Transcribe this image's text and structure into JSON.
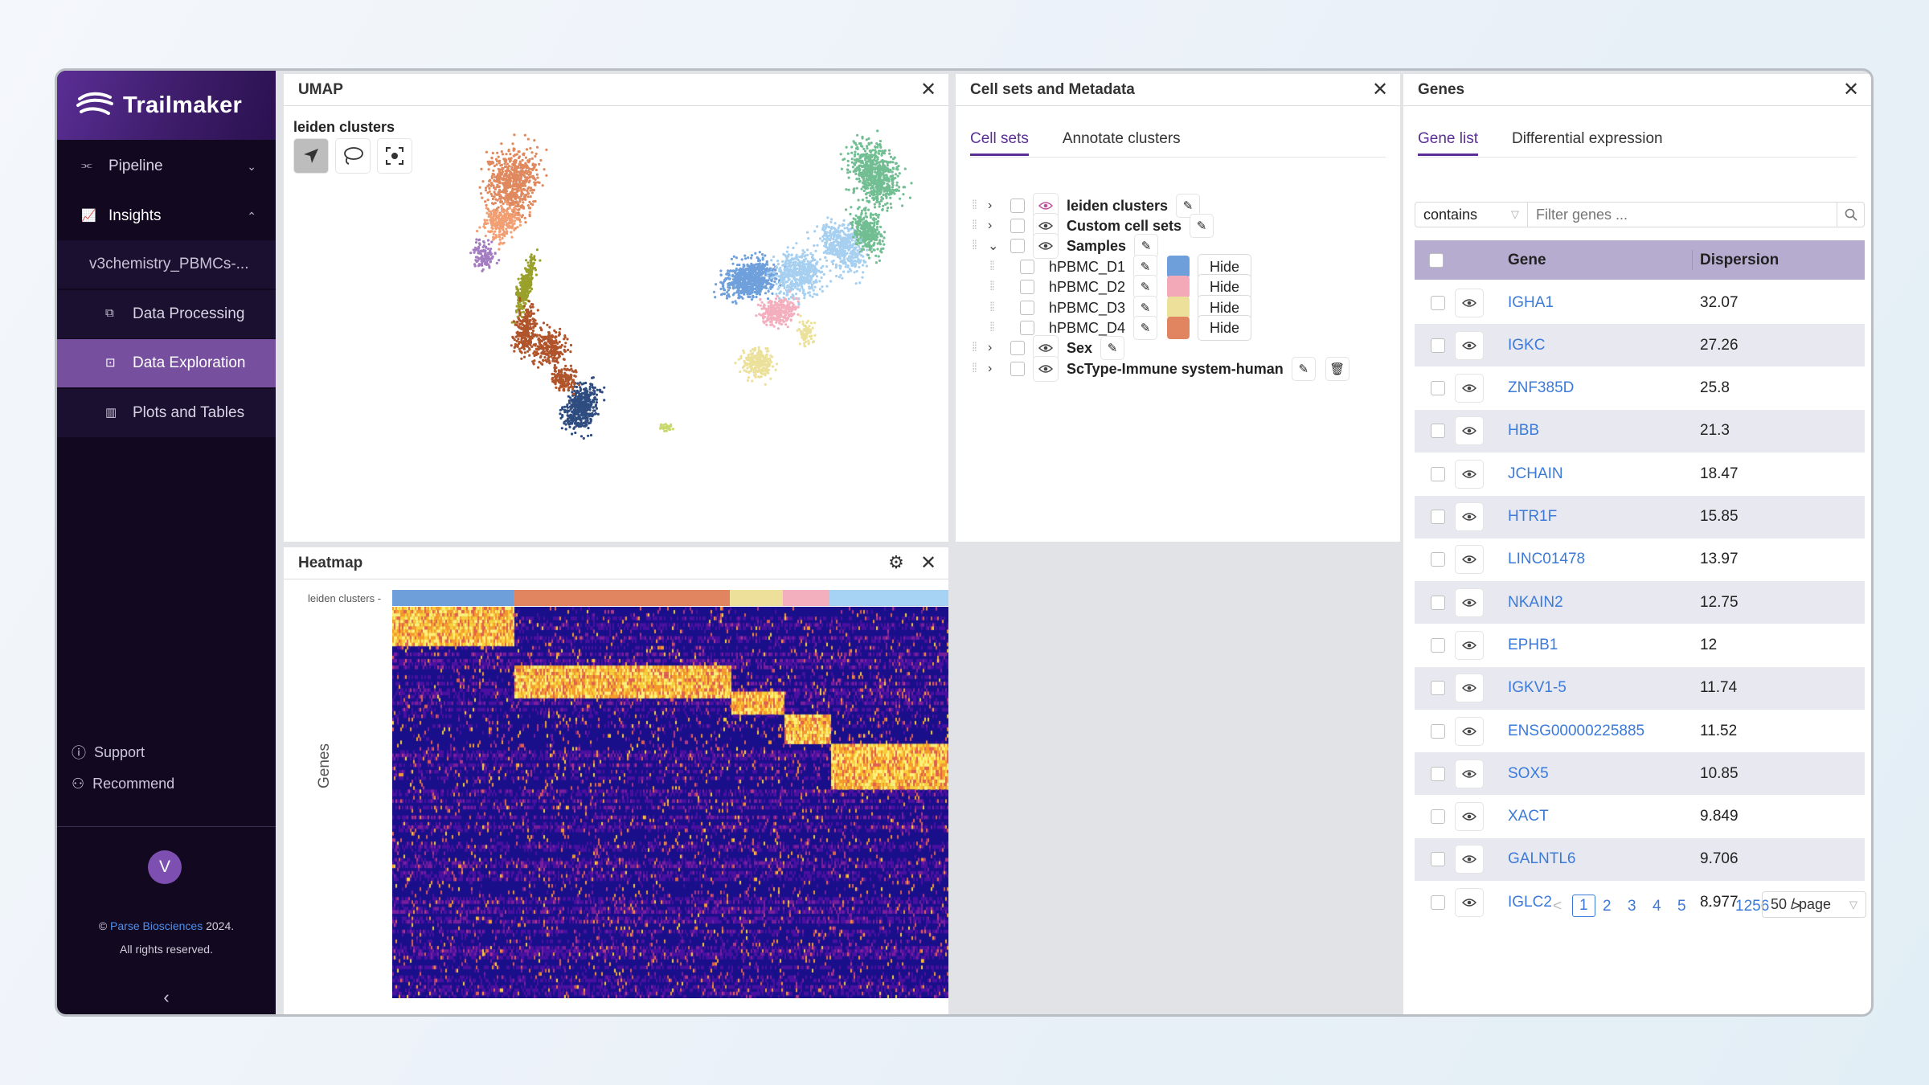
{
  "app": {
    "brand": "Trailmaker"
  },
  "sidebar": {
    "items": [
      {
        "label": "Pipeline",
        "icon": "pipeline-icon"
      },
      {
        "label": "Insights",
        "icon": "chart-icon"
      },
      {
        "label": "v3chemistry_PBMCs-..."
      },
      {
        "label": "Data Processing",
        "icon": "data-processing-icon"
      },
      {
        "label": "Data Exploration",
        "icon": "data-exploration-icon"
      },
      {
        "label": "Plots and Tables",
        "icon": "bar-chart-icon"
      }
    ],
    "support": "Support",
    "recommend": "Recommend",
    "avatar": "V",
    "copyright_prefix": "©",
    "copyright_link": "Parse Biosciences",
    "copyright_year": "2024.",
    "rights": "All rights reserved."
  },
  "umap": {
    "title": "UMAP",
    "subtitle": "leiden clusters",
    "colors": [
      "#e0895e",
      "#f29f73",
      "#a47dc0",
      "#9aa12b",
      "#b0542b",
      "#2f4c80",
      "#6fa0dc",
      "#a6cff0",
      "#f3afbe",
      "#ece19a",
      "#72be93",
      "#c9d86c"
    ]
  },
  "cellsets": {
    "title": "Cell sets and Metadata",
    "tabs": [
      "Cell sets",
      "Annotate clusters"
    ],
    "rows": [
      {
        "label": "leiden clusters",
        "bold": true
      },
      {
        "label": "Custom cell sets",
        "bold": true
      },
      {
        "label": "Samples",
        "bold": true
      },
      {
        "label": "hPBMC_D1",
        "color": "#6f9fdb",
        "hide": "Hide"
      },
      {
        "label": "hPBMC_D2",
        "color": "#f3a9b8",
        "hide": "Hide"
      },
      {
        "label": "hPBMC_D3",
        "color": "#ece09a",
        "hide": "Hide"
      },
      {
        "label": "hPBMC_D4",
        "color": "#e0855f",
        "hide": "Hide"
      },
      {
        "label": "Sex",
        "bold": true
      },
      {
        "label": "ScType-Immune system-human",
        "bold": true
      }
    ]
  },
  "heatmap": {
    "title": "Heatmap",
    "row_label": "leiden clusters -",
    "y_label": "Genes",
    "cluster_bar": [
      {
        "color": "#6f9fdb",
        "w": 12.5
      },
      {
        "color": "#e0855f",
        "w": 22.3
      },
      {
        "color": "#ece09a",
        "w": 5.5
      },
      {
        "color": "#f3afbe",
        "w": 4.8
      },
      {
        "color": "#a6d3f3",
        "w": 13.3
      },
      {
        "color": "#6cba8c",
        "w": 24.1
      },
      {
        "color": "#9ea12b",
        "w": 5.2
      },
      {
        "color": "#a980c2",
        "w": 1.5
      },
      {
        "color": "#2f4c80",
        "w": 5.1
      },
      {
        "color": "#b0542b",
        "w": 5.7
      }
    ]
  },
  "genes": {
    "title": "Genes",
    "tabs": [
      "Gene list",
      "Differential expression"
    ],
    "filter_mode": "contains",
    "filter_placeholder": "Filter genes ...",
    "headers": [
      "Gene",
      "Dispersion"
    ],
    "rows": [
      {
        "gene": "IGHA1",
        "dispersion": "32.07"
      },
      {
        "gene": "IGKC",
        "dispersion": "27.26"
      },
      {
        "gene": "ZNF385D",
        "dispersion": "25.8"
      },
      {
        "gene": "HBB",
        "dispersion": "21.3"
      },
      {
        "gene": "JCHAIN",
        "dispersion": "18.47"
      },
      {
        "gene": "HTR1F",
        "dispersion": "15.85"
      },
      {
        "gene": "LINC01478",
        "dispersion": "13.97"
      },
      {
        "gene": "NKAIN2",
        "dispersion": "12.75"
      },
      {
        "gene": "EPHB1",
        "dispersion": "12"
      },
      {
        "gene": "IGKV1-5",
        "dispersion": "11.74"
      },
      {
        "gene": "ENSG00000225885",
        "dispersion": "11.52"
      },
      {
        "gene": "SOX5",
        "dispersion": "10.85"
      },
      {
        "gene": "XACT",
        "dispersion": "9.849"
      },
      {
        "gene": "GALNTL6",
        "dispersion": "9.706"
      },
      {
        "gene": "IGLC2",
        "dispersion": "8.977"
      }
    ],
    "pager": {
      "prev": "<",
      "pages": [
        "1",
        "2",
        "3",
        "4",
        "5"
      ],
      "ellipsis": "···",
      "last": "1256",
      "next": ">",
      "page_size": "50 / page"
    }
  }
}
